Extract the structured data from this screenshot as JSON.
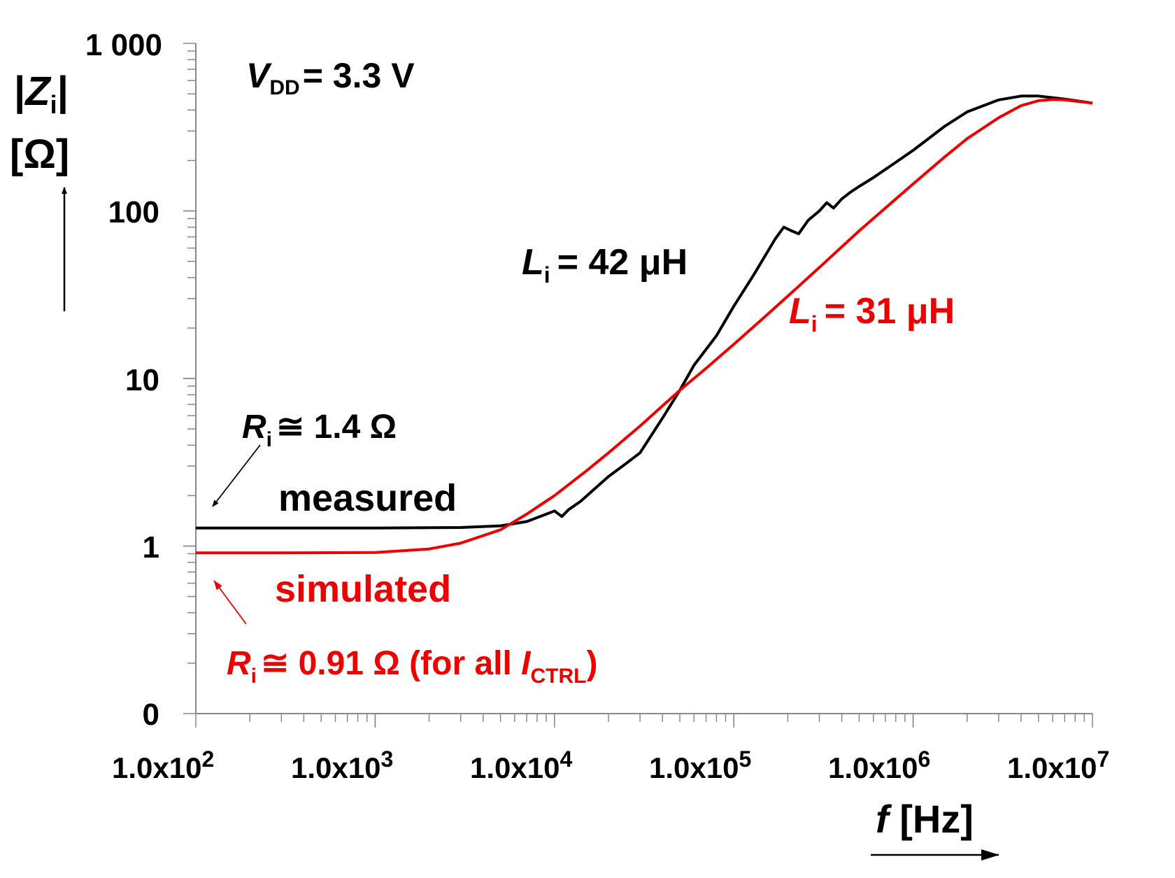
{
  "chart_data": {
    "type": "line",
    "xscale": "log",
    "yscale": "log",
    "xlim": [
      100,
      10000000
    ],
    "ylim": [
      0.1,
      1000
    ],
    "y_tick_values": [
      0.1,
      1,
      10,
      100,
      1000
    ],
    "y_tick_labels": [
      "0",
      "1",
      "10",
      "100",
      "1 000"
    ],
    "x_tick_values": [
      100,
      1000,
      10000,
      100000,
      1000000,
      10000000
    ],
    "x_tick_labels": [
      {
        "base": "1.0x10",
        "exp": "2"
      },
      {
        "base": "1.0x10",
        "exp": "3"
      },
      {
        "base": "1.0x10",
        "exp": "4"
      },
      {
        "base": "1.0x10",
        "exp": "5"
      },
      {
        "base": "1.0x10",
        "exp": "6"
      },
      {
        "base": "1.0x10",
        "exp": "7"
      }
    ],
    "ylabel": {
      "abs_symbol": "Z",
      "subscript": "i",
      "unit": "[Ω]"
    },
    "xlabel": {
      "symbol": "f",
      "unit": "[Hz]"
    },
    "condition": {
      "symbol": "V",
      "subscript": "DD",
      "value": "= 3.3 V"
    },
    "series": [
      {
        "name": "measured",
        "color": "#000000",
        "points": [
          [
            100,
            1.28
          ],
          [
            300,
            1.28
          ],
          [
            1000,
            1.28
          ],
          [
            3000,
            1.29
          ],
          [
            5000,
            1.32
          ],
          [
            7000,
            1.4
          ],
          [
            9000,
            1.55
          ],
          [
            10000,
            1.62
          ],
          [
            11000,
            1.5
          ],
          [
            12000,
            1.65
          ],
          [
            14000,
            1.85
          ],
          [
            16000,
            2.1
          ],
          [
            20000,
            2.6
          ],
          [
            25000,
            3.1
          ],
          [
            30000,
            3.6
          ],
          [
            40000,
            5.8
          ],
          [
            50000,
            8.5
          ],
          [
            60000,
            12.0
          ],
          [
            80000,
            18.0
          ],
          [
            100000,
            27.0
          ],
          [
            130000,
            42.0
          ],
          [
            170000,
            68.0
          ],
          [
            190000,
            80.0
          ],
          [
            210000,
            76.0
          ],
          [
            230000,
            73.0
          ],
          [
            260000,
            88.0
          ],
          [
            300000,
            100.0
          ],
          [
            330000,
            112.0
          ],
          [
            360000,
            104.0
          ],
          [
            400000,
            118.0
          ],
          [
            450000,
            130.0
          ],
          [
            500000,
            140.0
          ],
          [
            600000,
            158.0
          ],
          [
            800000,
            195.0
          ],
          [
            1000000,
            230.0
          ],
          [
            1500000,
            320.0
          ],
          [
            2000000,
            390.0
          ],
          [
            3000000,
            460.0
          ],
          [
            4000000,
            485.0
          ],
          [
            5000000,
            485.0
          ],
          [
            7000000,
            465.0
          ],
          [
            10000000,
            440.0
          ]
        ]
      },
      {
        "name": "simulated",
        "color": "#ee0000",
        "points": [
          [
            100,
            0.91
          ],
          [
            300,
            0.91
          ],
          [
            1000,
            0.915
          ],
          [
            2000,
            0.96
          ],
          [
            3000,
            1.04
          ],
          [
            5000,
            1.25
          ],
          [
            7000,
            1.55
          ],
          [
            10000,
            2.0
          ],
          [
            15000,
            2.8
          ],
          [
            20000,
            3.6
          ],
          [
            30000,
            5.2
          ],
          [
            50000,
            8.5
          ],
          [
            70000,
            11.5
          ],
          [
            100000,
            16.0
          ],
          [
            150000,
            23.5
          ],
          [
            200000,
            31.0
          ],
          [
            300000,
            46.0
          ],
          [
            500000,
            76.0
          ],
          [
            700000,
            104.0
          ],
          [
            1000000,
            145.0
          ],
          [
            1500000,
            210.0
          ],
          [
            2000000,
            270.0
          ],
          [
            3000000,
            360.0
          ],
          [
            4000000,
            425.0
          ],
          [
            5000000,
            455.0
          ],
          [
            6000000,
            462.0
          ],
          [
            7000000,
            460.0
          ],
          [
            10000000,
            440.0
          ]
        ]
      }
    ],
    "annotations": [
      {
        "id": "li-measured",
        "symbol": "L",
        "subscript": "i",
        "value": "= 42 μH",
        "color": "#000000"
      },
      {
        "id": "li-simulated",
        "symbol": "L",
        "subscript": "i",
        "value": "= 31 μH",
        "color": "#ee0000"
      },
      {
        "id": "ri-measured",
        "symbol": "R",
        "subscript": "i",
        "value": "≅ 1.4 Ω",
        "color": "#000000"
      },
      {
        "id": "ri-simulated",
        "symbol": "R",
        "subscript": "i",
        "value": "≅ 0.91 Ω (for all ",
        "tail_symbol": "I",
        "tail_subscript": "CTRL",
        "tail_close": ")",
        "color": "#ee0000"
      }
    ],
    "legend_labels": {
      "measured": "measured",
      "simulated": "simulated"
    }
  }
}
